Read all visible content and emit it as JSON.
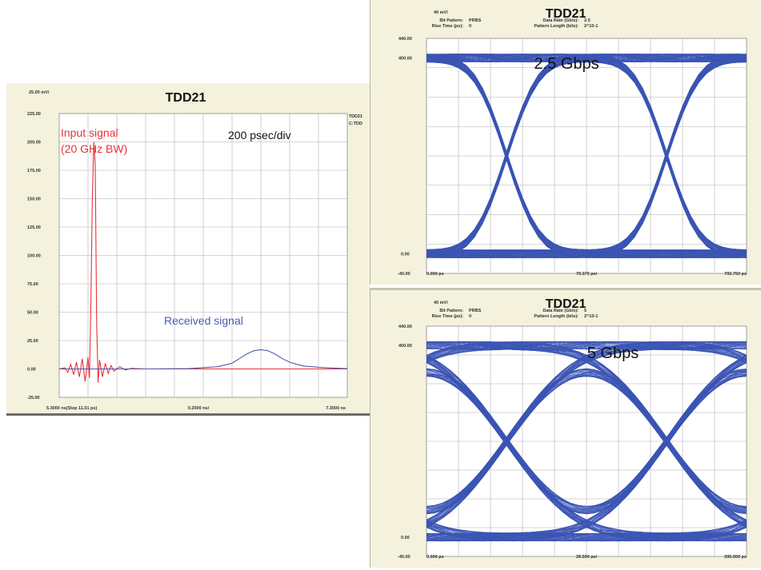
{
  "colors": {
    "panel_bg": "#f4f1dc",
    "plot_bg": "#ffffff",
    "grid": "#b0b0b0",
    "input_trace": "#e8323a",
    "received_trace": "#4a5bb0",
    "eye_trace": "#3d55b5"
  },
  "chart_data": [
    {
      "type": "line",
      "title": "TDD21",
      "scale_label": "25.00 mV/",
      "legend": [
        "TDD21",
        "C:TDD"
      ],
      "x_label": "0.2000 ns/",
      "x_start_label": "5.3000 ns(Step 11.01 ps)",
      "x_end_label": "7.3000 ns",
      "xlim": [
        5.3,
        7.3
      ],
      "ylim": [
        -25,
        225
      ],
      "y_ticks": [
        "225.00",
        "200.00",
        "175.00",
        "150.00",
        "125.00",
        "100.00",
        "75.00",
        "50.00",
        "25.00",
        "0.00",
        "-25.00"
      ],
      "annotations": {
        "input": [
          "Input signal",
          "(20 GHz BW)"
        ],
        "timebase": "200 psec/div",
        "received": "Received signal"
      },
      "grid": true,
      "series": [
        {
          "name": "Input signal (20 GHz BW)",
          "x": [
            5.3,
            5.34,
            5.36,
            5.38,
            5.4,
            5.42,
            5.44,
            5.46,
            5.48,
            5.5,
            5.51,
            5.52,
            5.53,
            5.54,
            5.55,
            5.56,
            5.57,
            5.58,
            5.6,
            5.62,
            5.64,
            5.66,
            5.68,
            5.72,
            5.76,
            5.8,
            5.9,
            6.0,
            6.5,
            7.0,
            7.3
          ],
          "y": [
            0,
            1,
            -3,
            4,
            -5,
            6,
            -7,
            9,
            -11,
            10,
            -8,
            60,
            150,
            200,
            180,
            40,
            -12,
            8,
            -7,
            5,
            -4,
            3,
            -2,
            2,
            -1,
            0.5,
            0,
            0,
            0,
            0,
            0
          ]
        },
        {
          "name": "Received signal",
          "x": [
            5.3,
            5.6,
            5.9,
            6.2,
            6.4,
            6.5,
            6.55,
            6.6,
            6.65,
            6.7,
            6.75,
            6.8,
            6.85,
            6.9,
            6.95,
            7.0,
            7.1,
            7.2,
            7.3
          ],
          "y": [
            0,
            0,
            0,
            0.3,
            2,
            5,
            9,
            13,
            16,
            17,
            16,
            13,
            9,
            6,
            4,
            2.5,
            1.5,
            0.8,
            0.3
          ]
        }
      ]
    },
    {
      "type": "line",
      "subtype": "eye-diagram",
      "title": "TDD21",
      "scale_label": "40 mV/",
      "info": {
        "bit_pattern_label": "Bit Pattern:",
        "bit_pattern": "PRBS",
        "rise_time_label": "Rise Time (ps):",
        "rise_time": "0",
        "data_rate_label": "Data Rate (Gb/s):",
        "data_rate": "2.5",
        "pattern_length_label": "Pattern Length (bits):",
        "pattern_length": "2^10-1"
      },
      "rate_label": "2.5 Gbps",
      "bit_rate_gbps": 2.5,
      "y_ticks": {
        "top": "440.00",
        "high": "400.00",
        "zero": "0.00",
        "bottom": "-40.00"
      },
      "ylim": [
        -40,
        440
      ],
      "high_level_mv": 400,
      "x_labels": [
        "0.000 ps",
        "79.375 ps/",
        "793.750 ps"
      ],
      "xlim_ps": [
        0,
        793.75
      ],
      "eye_opening": "wide",
      "grid": true
    },
    {
      "type": "line",
      "subtype": "eye-diagram",
      "title": "TDD21",
      "scale_label": "40 mV/",
      "info": {
        "bit_pattern_label": "Bit Pattern:",
        "bit_pattern": "PRBS",
        "rise_time_label": "Rise Time (ps):",
        "rise_time": "0",
        "data_rate_label": "Data Rate (Gb/s):",
        "data_rate": "5",
        "pattern_length_label": "Pattern Length (bits):",
        "pattern_length": "2^10-1"
      },
      "rate_label": "5 Gbps",
      "bit_rate_gbps": 5,
      "y_ticks": {
        "top": "440.00",
        "high": "400.00",
        "zero": "0.00",
        "bottom": "-40.00"
      },
      "ylim": [
        -40,
        440
      ],
      "high_level_mv": 400,
      "x_labels": [
        "0.000 ps",
        "39.500 ps/",
        "395.000 ps"
      ],
      "xlim_ps": [
        0,
        395
      ],
      "eye_opening": "nearly closed",
      "grid": true
    }
  ]
}
